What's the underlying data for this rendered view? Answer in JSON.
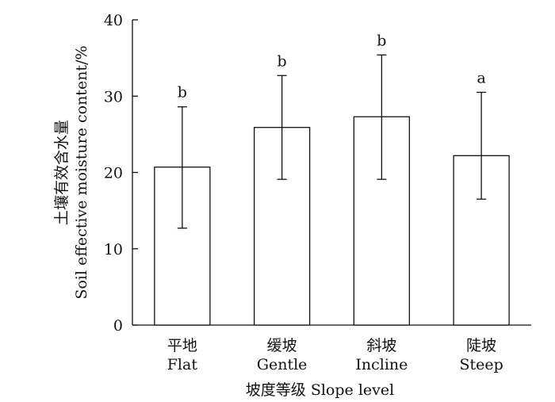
{
  "chart_data": {
    "type": "bar",
    "categories": [
      {
        "zh": "平地",
        "en": "Flat"
      },
      {
        "zh": "缓坡",
        "en": "Gentle"
      },
      {
        "zh": "斜坡",
        "en": "Incline"
      },
      {
        "zh": "陡坡",
        "en": "Steep"
      }
    ],
    "values": [
      20.7,
      25.9,
      27.3,
      22.2
    ],
    "error_low": [
      12.7,
      19.1,
      19.1,
      16.5
    ],
    "error_high": [
      28.6,
      32.7,
      35.4,
      30.5
    ],
    "significance": [
      "b",
      "b",
      "b",
      "a"
    ],
    "xlabel": "坡度等级 Slope level",
    "ylabel_zh": "土壤有效含水量",
    "ylabel_en": "Soil effective moisture content/%",
    "ylim": [
      0,
      40
    ],
    "yticks": [
      "0",
      "10",
      "20",
      "30",
      "40"
    ],
    "grid": false,
    "colors": {
      "bar_fill": "#ffffff",
      "stroke": "#111111"
    }
  }
}
